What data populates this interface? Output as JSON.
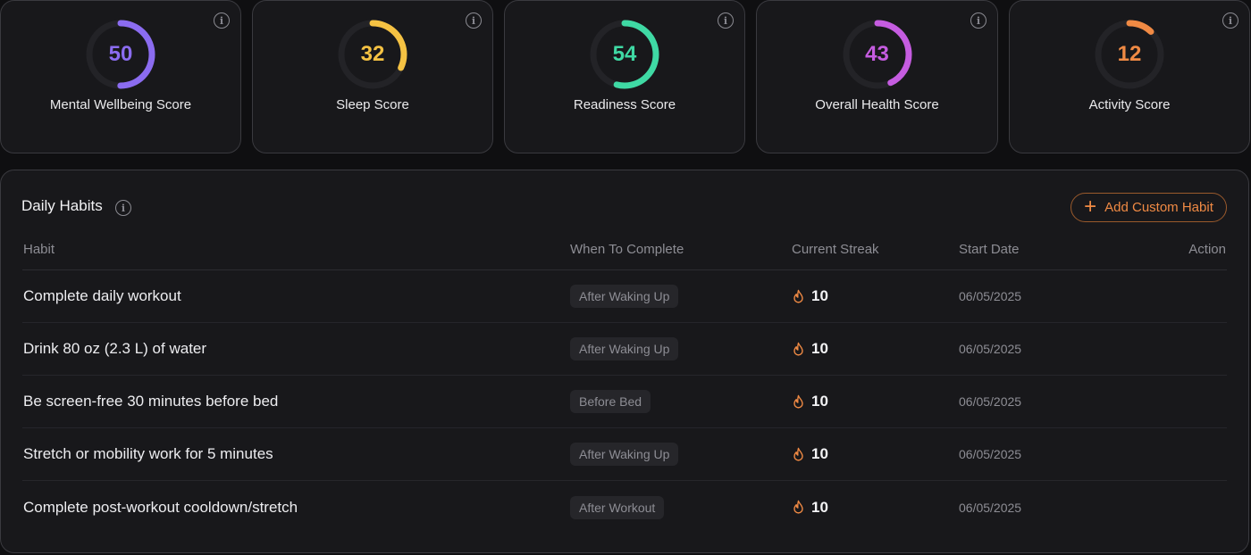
{
  "scores": [
    {
      "value": "50",
      "label": "Mental Wellbeing Score",
      "fraction": 0.5,
      "color": "#8b6cf0"
    },
    {
      "value": "32",
      "label": "Sleep Score",
      "fraction": 0.32,
      "color": "#f5c243"
    },
    {
      "value": "54",
      "label": "Readiness Score",
      "fraction": 0.54,
      "color": "#3fd9a4"
    },
    {
      "value": "43",
      "label": "Overall Health Score",
      "fraction": 0.43,
      "color": "#c55ce0"
    },
    {
      "value": "12",
      "label": "Activity Score",
      "fraction": 0.12,
      "color": "#f08a44"
    }
  ],
  "habits": {
    "title": "Daily Habits",
    "add_button_label": "Add Custom Habit",
    "columns": {
      "habit": "Habit",
      "when": "When To Complete",
      "streak": "Current Streak",
      "start": "Start Date",
      "action": "Action"
    },
    "rows": [
      {
        "name": "Complete daily workout",
        "when": "After Waking Up",
        "streak": "10",
        "start": "06/05/2025"
      },
      {
        "name": "Drink 80 oz (2.3 L) of water",
        "when": "After Waking Up",
        "streak": "10",
        "start": "06/05/2025"
      },
      {
        "name": "Be screen-free 30 minutes before bed",
        "when": "Before Bed",
        "streak": "10",
        "start": "06/05/2025"
      },
      {
        "name": "Stretch or mobility work for 5 minutes",
        "when": "After Waking Up",
        "streak": "10",
        "start": "06/05/2025"
      },
      {
        "name": "Complete post-workout cooldown/stretch",
        "when": "After Workout",
        "streak": "10",
        "start": "06/05/2025"
      }
    ]
  },
  "colors": {
    "flame": "#f08a44",
    "track": "#232327"
  },
  "icons": {
    "info": "info-icon",
    "plus": "plus-icon",
    "flame": "flame-icon"
  }
}
